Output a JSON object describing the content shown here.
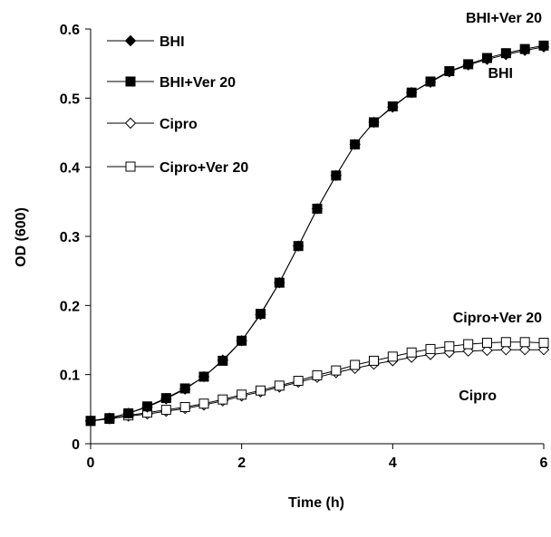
{
  "chart_data": {
    "type": "line",
    "title": "",
    "xlabel": "Time (h)",
    "ylabel": "OD (600)",
    "xlim": [
      0,
      6
    ],
    "ylim": [
      0,
      0.6
    ],
    "x_ticks": [
      "0",
      "2",
      "4",
      "6"
    ],
    "y_ticks": [
      "0",
      "0.1",
      "0.2",
      "0.3",
      "0.4",
      "0.5",
      "0.6"
    ],
    "grid": false,
    "legend_position": "top-left",
    "x": [
      0,
      0.25,
      0.5,
      0.75,
      1,
      1.25,
      1.5,
      1.75,
      2,
      2.25,
      2.5,
      2.75,
      3,
      3.25,
      3.5,
      3.75,
      4,
      4.25,
      4.5,
      4.75,
      5,
      5.25,
      5.5,
      5.75,
      6
    ],
    "series": [
      {
        "name": "BHI",
        "marker": "filled-diamond",
        "values": [
          0.033,
          0.037,
          0.044,
          0.053,
          0.065,
          0.079,
          0.097,
          0.121,
          0.149,
          0.187,
          0.233,
          0.286,
          0.34,
          0.388,
          0.433,
          0.465,
          0.487,
          0.508,
          0.523,
          0.538,
          0.548,
          0.556,
          0.563,
          0.569,
          0.574
        ]
      },
      {
        "name": "BHI+Ver 20",
        "marker": "filled-square",
        "values": [
          0.033,
          0.037,
          0.044,
          0.054,
          0.066,
          0.08,
          0.097,
          0.12,
          0.149,
          0.188,
          0.233,
          0.286,
          0.34,
          0.388,
          0.433,
          0.465,
          0.488,
          0.508,
          0.524,
          0.539,
          0.549,
          0.558,
          0.565,
          0.571,
          0.576
        ]
      },
      {
        "name": "Cipro",
        "marker": "open-diamond",
        "values": [
          0.033,
          0.036,
          0.04,
          0.043,
          0.047,
          0.051,
          0.056,
          0.062,
          0.069,
          0.075,
          0.082,
          0.089,
          0.096,
          0.103,
          0.109,
          0.115,
          0.12,
          0.125,
          0.129,
          0.132,
          0.134,
          0.135,
          0.136,
          0.136,
          0.136
        ]
      },
      {
        "name": "Cipro+Ver 20",
        "marker": "open-square",
        "values": [
          0.033,
          0.036,
          0.041,
          0.045,
          0.049,
          0.053,
          0.058,
          0.064,
          0.071,
          0.077,
          0.084,
          0.091,
          0.099,
          0.106,
          0.114,
          0.12,
          0.126,
          0.132,
          0.137,
          0.141,
          0.144,
          0.146,
          0.147,
          0.147,
          0.146
        ]
      }
    ],
    "annotations": [
      "BHI+Ver 20",
      "BHI",
      "Cipro+Ver 20",
      "Cipro"
    ]
  }
}
